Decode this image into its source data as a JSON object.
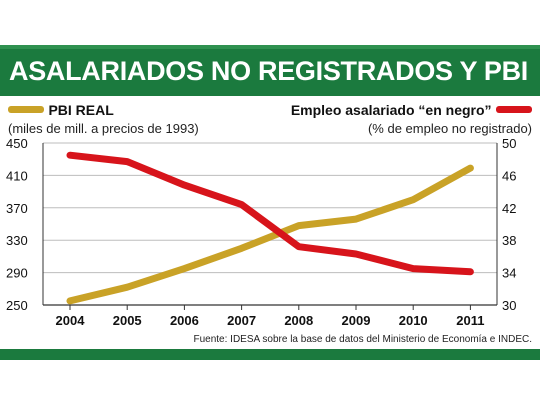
{
  "title": "ASALARIADOS NO REGISTRADOS Y PBI",
  "source": "Fuente: IDESA sobre la base de datos del Ministerio de Economía e INDEC.",
  "colors": {
    "green": "#1b7a3e",
    "gold": "#c9a227",
    "red": "#d7141b"
  },
  "chart_data": {
    "type": "line",
    "categories": [
      "2004",
      "2005",
      "2006",
      "2007",
      "2008",
      "2009",
      "2010",
      "2011"
    ],
    "series": [
      {
        "name": "PBI REAL",
        "unit": "(miles de mill. a precios de 1993)",
        "axis": "left",
        "color": "#c9a227",
        "values": [
          255,
          272,
          295,
          320,
          348,
          356,
          380,
          419
        ]
      },
      {
        "name": "Empleo asalariado “en negro”",
        "unit": "(% de empleo no registrado)",
        "axis": "right",
        "color": "#d7141b",
        "values": [
          48.5,
          47.7,
          44.8,
          42.4,
          37.2,
          36.3,
          34.5,
          34.1
        ]
      }
    ],
    "left_axis": {
      "ticks": [
        250,
        290,
        330,
        370,
        410,
        450
      ],
      "range": [
        250,
        450
      ]
    },
    "right_axis": {
      "ticks": [
        30,
        34,
        38,
        42,
        46,
        50
      ],
      "range": [
        30,
        50
      ]
    },
    "grid": true,
    "legend": "top"
  }
}
